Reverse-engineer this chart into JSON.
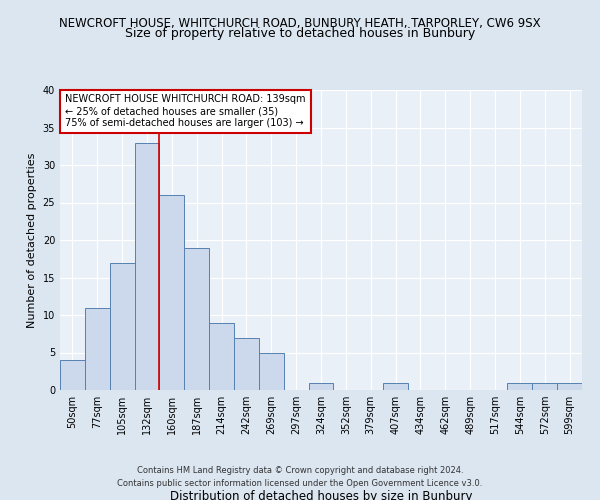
{
  "title_line1": "NEWCROFT HOUSE, WHITCHURCH ROAD, BUNBURY HEATH, TARPORLEY, CW6 9SX",
  "title_line2": "Size of property relative to detached houses in Bunbury",
  "xlabel": "Distribution of detached houses by size in Bunbury",
  "ylabel": "Number of detached properties",
  "bar_labels": [
    "50sqm",
    "77sqm",
    "105sqm",
    "132sqm",
    "160sqm",
    "187sqm",
    "214sqm",
    "242sqm",
    "269sqm",
    "297sqm",
    "324sqm",
    "352sqm",
    "379sqm",
    "407sqm",
    "434sqm",
    "462sqm",
    "489sqm",
    "517sqm",
    "544sqm",
    "572sqm",
    "599sqm"
  ],
  "bar_heights": [
    4,
    11,
    17,
    33,
    26,
    19,
    9,
    7,
    5,
    0,
    1,
    0,
    0,
    1,
    0,
    0,
    0,
    0,
    1,
    1,
    1
  ],
  "bar_color": "#ccd9ec",
  "bar_edge_color": "#5580b0",
  "ylim": [
    0,
    40
  ],
  "yticks": [
    0,
    5,
    10,
    15,
    20,
    25,
    30,
    35,
    40
  ],
  "property_line_x": 3.5,
  "annotation_box_text": "NEWCROFT HOUSE WHITCHURCH ROAD: 139sqm\n← 25% of detached houses are smaller (35)\n75% of semi-detached houses are larger (103) →",
  "annotation_box_color": "#ffffff",
  "annotation_box_edge_color": "#cc0000",
  "annotation_text_fontsize": 7,
  "vline_color": "#cc0000",
  "footer_line1": "Contains HM Land Registry data © Crown copyright and database right 2024.",
  "footer_line2": "Contains public sector information licensed under the Open Government Licence v3.0.",
  "bg_color": "#dce6f1",
  "plot_bg_color": "#eaf0f8",
  "grid_color": "#ffffff",
  "title1_fontsize": 8.5,
  "title2_fontsize": 9,
  "xlabel_fontsize": 8.5,
  "ylabel_fontsize": 8,
  "tick_fontsize": 7,
  "footer_fontsize": 6
}
